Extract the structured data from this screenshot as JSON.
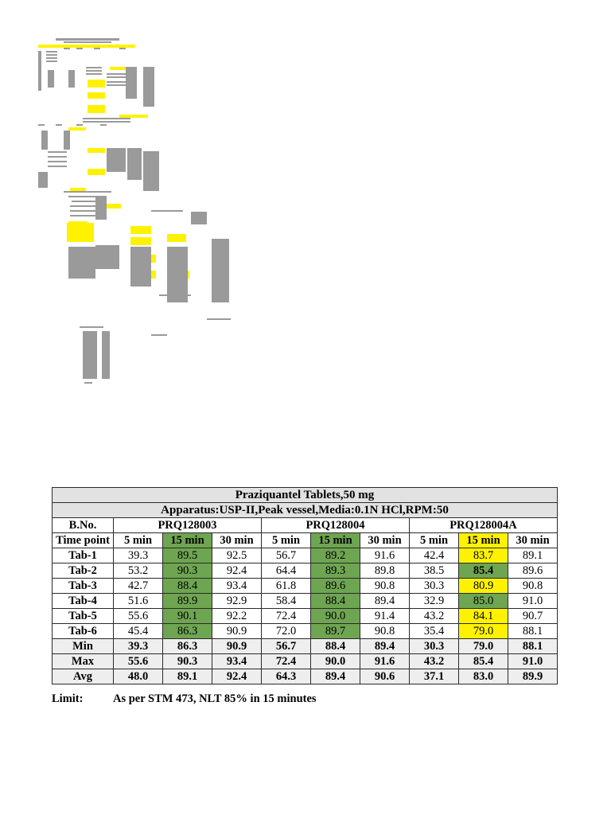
{
  "table": {
    "title": "Praziquantel Tablets,50 mg",
    "subtitle": "Apparatus:USP-II,Peak vessel,Media:0.1N HCl,RPM:50",
    "batch_label": "B.No.",
    "timepoint_label": "Time point",
    "batches": [
      "PRQ128003",
      "PRQ128004",
      "PRQ128004A"
    ],
    "timepoints": [
      "5 min",
      "15 min",
      "30 min"
    ],
    "rows": [
      {
        "label": "Tab-1",
        "cells": [
          "39.3",
          "89.5",
          "92.5",
          "56.7",
          "89.2",
          "91.6",
          "42.4",
          "83.7",
          "89.1"
        ]
      },
      {
        "label": "Tab-2",
        "cells": [
          "53.2",
          "90.3",
          "92.4",
          "64.4",
          "89.3",
          "89.8",
          "38.5",
          "85.4",
          "89.6"
        ]
      },
      {
        "label": "Tab-3",
        "cells": [
          "42.7",
          "88.4",
          "93.4",
          "61.8",
          "89.6",
          "90.8",
          "30.3",
          "80.9",
          "90.8"
        ]
      },
      {
        "label": "Tab-4",
        "cells": [
          "51.6",
          "89.9",
          "92.9",
          "58.4",
          "88.4",
          "89.4",
          "32.9",
          "85.0",
          "91.0"
        ]
      },
      {
        "label": "Tab-5",
        "cells": [
          "55.6",
          "90.1",
          "92.2",
          "72.4",
          "90.0",
          "91.4",
          "43.2",
          "84.1",
          "90.7"
        ]
      },
      {
        "label": "Tab-6",
        "cells": [
          "45.4",
          "86.3",
          "90.9",
          "72.0",
          "89.7",
          "90.8",
          "35.4",
          "79.0",
          "88.1"
        ]
      }
    ],
    "summary": [
      {
        "label": "Min",
        "cells": [
          "39.3",
          "86.3",
          "90.9",
          "56.7",
          "88.4",
          "89.4",
          "30.3",
          "79.0",
          "88.1"
        ]
      },
      {
        "label": "Max",
        "cells": [
          "55.6",
          "90.3",
          "93.4",
          "72.4",
          "90.0",
          "91.6",
          "43.2",
          "85.4",
          "91.0"
        ]
      },
      {
        "label": "Avg",
        "cells": [
          "48.0",
          "89.1",
          "92.4",
          "64.3",
          "89.4",
          "90.6",
          "37.1",
          "83.0",
          "89.9"
        ]
      }
    ]
  },
  "limit": {
    "label": "Limit:",
    "text": "As per STM 473, NLT 85% in 15 minutes"
  },
  "colors": {
    "green": "#6ea551",
    "yellow": "#fff200",
    "banner": "#e2e2e2"
  }
}
